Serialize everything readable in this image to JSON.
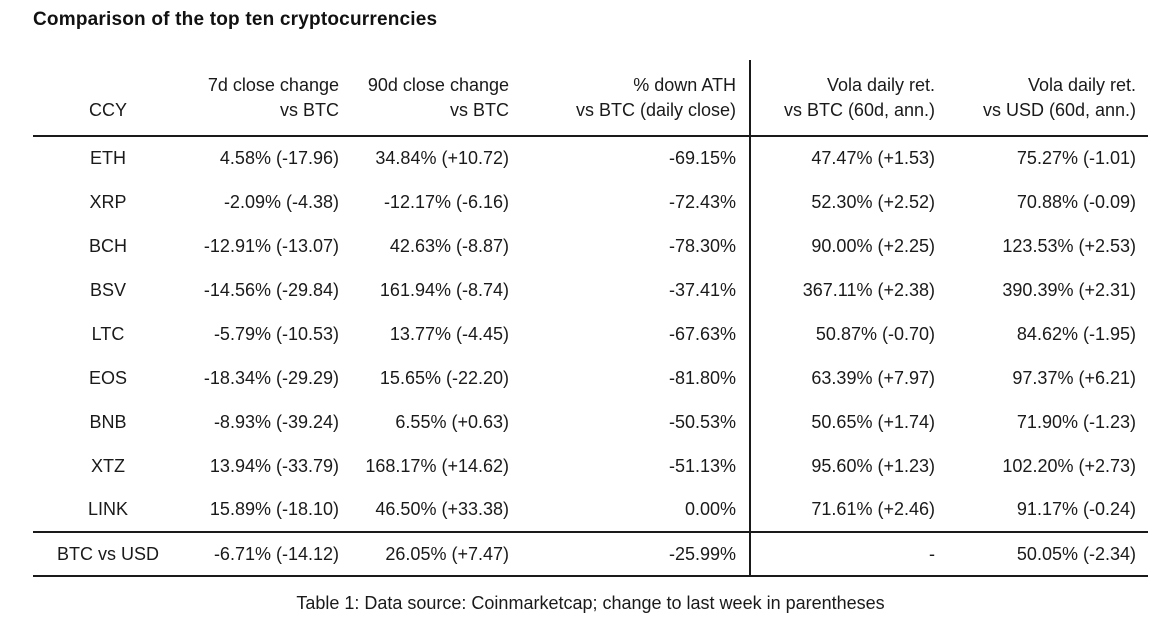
{
  "title": "Comparison of the top ten cryptocurrencies",
  "table": {
    "columns": [
      {
        "line1": "",
        "line2": "CCY"
      },
      {
        "line1": "7d close change",
        "line2": "vs BTC"
      },
      {
        "line1": "90d close change",
        "line2": "vs BTC"
      },
      {
        "line1": "% down ATH",
        "line2": "vs BTC (daily close)"
      },
      {
        "line1": "Vola daily ret.",
        "line2": "vs BTC (60d, ann.)"
      },
      {
        "line1": "Vola daily ret.",
        "line2": "vs USD (60d, ann.)"
      }
    ],
    "row_keys": [
      "ccy",
      "d7",
      "d90",
      "ath",
      "vola_btc",
      "vola_usd"
    ],
    "rows": [
      {
        "ccy": "ETH",
        "d7": "4.58% (-17.96)",
        "d90": "34.84% (+10.72)",
        "ath": "-69.15%",
        "vola_btc": "47.47% (+1.53)",
        "vola_usd": "75.27% (-1.01)"
      },
      {
        "ccy": "XRP",
        "d7": "-2.09% (-4.38)",
        "d90": "-12.17% (-6.16)",
        "ath": "-72.43%",
        "vola_btc": "52.30% (+2.52)",
        "vola_usd": "70.88% (-0.09)"
      },
      {
        "ccy": "BCH",
        "d7": "-12.91% (-13.07)",
        "d90": "42.63% (-8.87)",
        "ath": "-78.30%",
        "vola_btc": "90.00% (+2.25)",
        "vola_usd": "123.53% (+2.53)"
      },
      {
        "ccy": "BSV",
        "d7": "-14.56% (-29.84)",
        "d90": "161.94% (-8.74)",
        "ath": "-37.41%",
        "vola_btc": "367.11% (+2.38)",
        "vola_usd": "390.39% (+2.31)"
      },
      {
        "ccy": "LTC",
        "d7": "-5.79% (-10.53)",
        "d90": "13.77% (-4.45)",
        "ath": "-67.63%",
        "vola_btc": "50.87% (-0.70)",
        "vola_usd": "84.62% (-1.95)"
      },
      {
        "ccy": "EOS",
        "d7": "-18.34% (-29.29)",
        "d90": "15.65% (-22.20)",
        "ath": "-81.80%",
        "vola_btc": "63.39% (+7.97)",
        "vola_usd": "97.37% (+6.21)"
      },
      {
        "ccy": "BNB",
        "d7": "-8.93% (-39.24)",
        "d90": "6.55% (+0.63)",
        "ath": "-50.53%",
        "vola_btc": "50.65% (+1.74)",
        "vola_usd": "71.90% (-1.23)"
      },
      {
        "ccy": "XTZ",
        "d7": "13.94% (-33.79)",
        "d90": "168.17% (+14.62)",
        "ath": "-51.13%",
        "vola_btc": "95.60% (+1.23)",
        "vola_usd": "102.20% (+2.73)"
      },
      {
        "ccy": "LINK",
        "d7": "15.89% (-18.10)",
        "d90": "46.50% (+33.38)",
        "ath": "0.00%",
        "vola_btc": "71.61% (+2.46)",
        "vola_usd": "91.17% (-0.24)"
      }
    ],
    "footer_row": {
      "ccy": "BTC vs USD",
      "d7": "-6.71% (-14.12)",
      "d90": "26.05% (+7.47)",
      "ath": "-25.99%",
      "vola_btc": "-",
      "vola_usd": "50.05% (-2.34)"
    }
  },
  "caption": "Table 1: Data source: Coinmarketcap; change to last week in parentheses"
}
